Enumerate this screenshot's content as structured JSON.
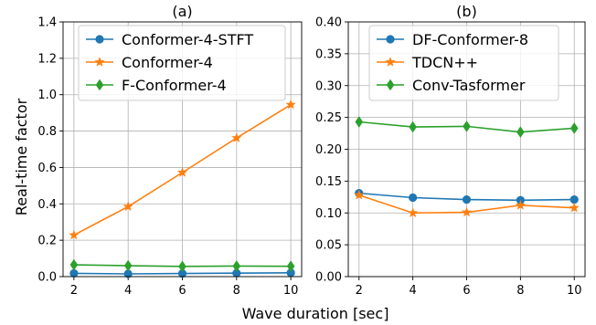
{
  "figure": {
    "xlabel": "Wave duration [sec]",
    "ylabel": "Real-time factor"
  },
  "chart_data": [
    {
      "type": "line",
      "title": "(a)",
      "xlabel": "Wave duration [sec]",
      "ylabel": "Real-time factor",
      "x": [
        2,
        4,
        6,
        8,
        10
      ],
      "xticks": [
        "2",
        "4",
        "6",
        "8",
        "10"
      ],
      "ylim": [
        0,
        1.4
      ],
      "yticks": [
        "0.0",
        "0.2",
        "0.4",
        "0.6",
        "0.8",
        "1.0",
        "1.2",
        "1.4"
      ],
      "grid": true,
      "legend": "top-left",
      "series": [
        {
          "name": "Conformer-4-STFT",
          "color": "#1f77b4",
          "marker": "circle",
          "values": [
            0.018,
            0.015,
            0.017,
            0.019,
            0.021
          ]
        },
        {
          "name": "Conformer-4",
          "color": "#ff7f0e",
          "marker": "star",
          "values": [
            0.228,
            0.385,
            0.572,
            0.762,
            0.945
          ]
        },
        {
          "name": "F-Conformer-4",
          "color": "#2ca02c",
          "marker": "diamond",
          "values": [
            0.065,
            0.06,
            0.056,
            0.058,
            0.057
          ]
        }
      ]
    },
    {
      "type": "line",
      "title": "(b)",
      "xlabel": "Wave duration [sec]",
      "ylabel": "",
      "x": [
        2,
        4,
        6,
        8,
        10
      ],
      "xticks": [
        "2",
        "4",
        "6",
        "8",
        "10"
      ],
      "ylim": [
        0,
        0.4
      ],
      "yticks": [
        "0.00",
        "0.05",
        "0.10",
        "0.15",
        "0.20",
        "0.25",
        "0.30",
        "0.35",
        "0.40"
      ],
      "grid": true,
      "legend": "top-left",
      "series": [
        {
          "name": "DF-Conformer-8",
          "color": "#1f77b4",
          "marker": "circle",
          "values": [
            0.131,
            0.124,
            0.121,
            0.12,
            0.121
          ]
        },
        {
          "name": "TDCN++",
          "color": "#ff7f0e",
          "marker": "star",
          "values": [
            0.128,
            0.1,
            0.101,
            0.112,
            0.108
          ]
        },
        {
          "name": "Conv-Tasformer",
          "color": "#2ca02c",
          "marker": "diamond",
          "values": [
            0.243,
            0.235,
            0.236,
            0.227,
            0.233
          ]
        }
      ]
    }
  ]
}
